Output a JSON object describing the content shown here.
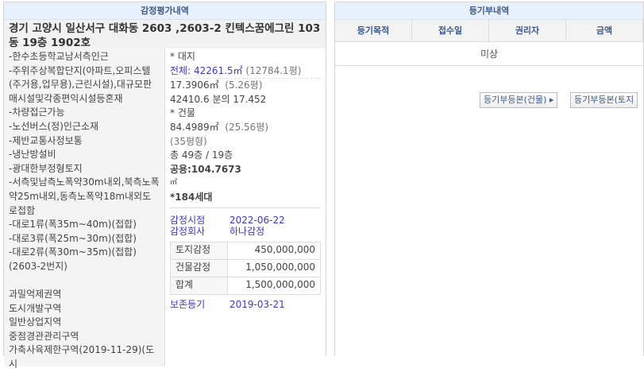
{
  "appraisal": {
    "title": "감정평가내역",
    "address": "경기 고양시 일산서구 대화동 2603 ,2603-2 킨텍스꿈에그린 103동 19층 1902호",
    "left_lines": [
      "-한수초등학교남서측인근",
      "-주위주상복합단지(아파트,오피스텔(주거용,업무용),근린시설),대규모판매시설및각종편익시설등혼재",
      "-차량접근가능",
      "-노선버스(정)인근소재",
      "-제반교통사정보통",
      "-냉난방설비",
      "-광대한부정형토지",
      "-서측및남측노폭약30m내외,북측노폭약25m내외,동측노폭약18m내외도로접함",
      "-대로1류(폭35m~40m)(접합)",
      "-대로3류(폭25m~30m)(접합)",
      "-대로2류(폭30m~35m)(접합)(2603-2번지)",
      "",
      "과밀억제권역",
      "도시개발구역",
      "일반상업지역",
      "중점경관관리구역",
      "가축사육제한구역(2019-11-29)(도시"
    ],
    "land_label": "* 대지",
    "land_total": "전체: 42261.5㎡",
    "land_total_pyeong": "(12784.1평)",
    "land_share": "17.3906㎡",
    "land_share_pyeong": "(5.26평)",
    "land_ratio": "42410.6 분의 17.452",
    "building_label": "* 건물",
    "building_area": "84.4989㎡",
    "building_pyeong": "(25.56평)",
    "building_type": "(35평형)",
    "floors": "총 49층 / 19층",
    "common": "공용:104.7673",
    "common_unit": "㎡",
    "households": "*184세대",
    "date_label": "감정시점",
    "date_value": "2022-06-22",
    "company_label": "감정회사",
    "company_value": "하나감정",
    "values": [
      {
        "k": "토지감정",
        "v": "450,000,000"
      },
      {
        "k": "건물감정",
        "v": "1,050,000,000"
      },
      {
        "k": "합계",
        "v": "1,500,000,000"
      }
    ],
    "reg_label": "보존등기",
    "reg_value": "2019-03-21"
  },
  "registry": {
    "title": "등기부내역",
    "columns": [
      "등기목적",
      "접수일",
      "권리자",
      "금액"
    ],
    "empty": "미상",
    "btn_building": "등기부등본(건물) ▸",
    "btn_land": "등기부등본(토지"
  }
}
